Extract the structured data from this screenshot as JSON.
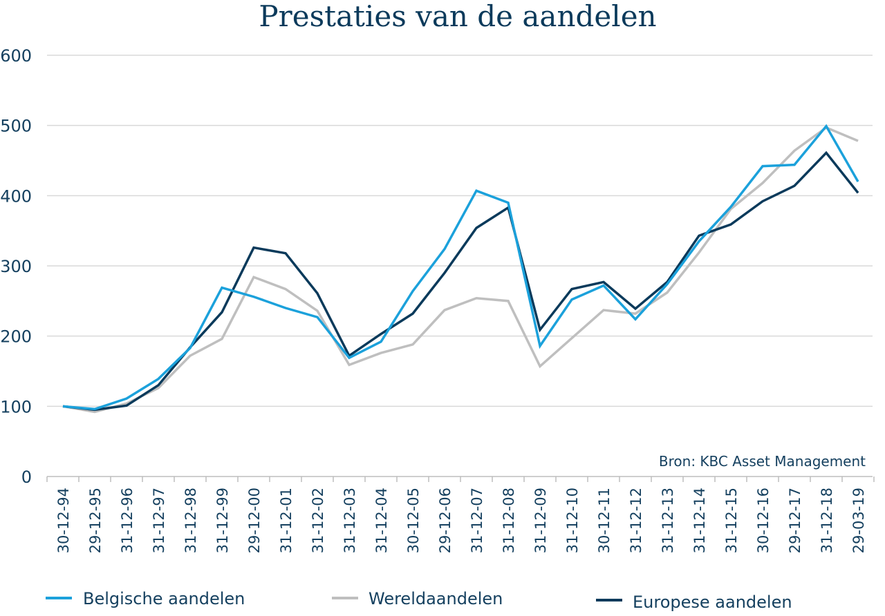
{
  "chart_data": {
    "type": "line",
    "title": "Prestaties van de aandelen",
    "source": "Bron: KBC Asset Management",
    "xlabel": "",
    "ylabel": "",
    "ylim": [
      0,
      600
    ],
    "yticks": [
      "600",
      "500",
      "400",
      "300",
      "200",
      "100",
      "0"
    ],
    "ytick_values": [
      600,
      500,
      400,
      300,
      200,
      100,
      0
    ],
    "grid": true,
    "legend_position": "bottom",
    "categories": [
      "30-12-94",
      "29-12-95",
      "31-12-96",
      "31-12-97",
      "31-12-98",
      "31-12-99",
      "29-12-00",
      "31-12-01",
      "31-12-02",
      "31-12-03",
      "31-12-04",
      "30-12-05",
      "29-12-06",
      "31-12-07",
      "31-12-08",
      "31-12-09",
      "31-12-10",
      "30-12-11",
      "31-12-12",
      "31-12-13",
      "31-12-14",
      "31-12-15",
      "30-12-16",
      "29-12-17",
      "31-12-18",
      "29-03-19"
    ],
    "series": [
      {
        "name": "Belgische aandelen",
        "color": "#1ba1db",
        "values": [
          100,
          96,
          111,
          139,
          183,
          269,
          256,
          240,
          227,
          169,
          192,
          264,
          324,
          407,
          390,
          186,
          252,
          272,
          224,
          274,
          335,
          384,
          442,
          444,
          499,
          420
        ]
      },
      {
        "name": "Wereldaandelen",
        "color": "#bfbfbf",
        "values": [
          100,
          92,
          104,
          126,
          172,
          196,
          284,
          267,
          236,
          159,
          176,
          188,
          237,
          254,
          250,
          157,
          197,
          237,
          232,
          262,
          319,
          381,
          418,
          464,
          497,
          478
        ]
      },
      {
        "name": "Europese aandelen",
        "color": "#0b3a5b",
        "values": [
          100,
          95,
          101,
          130,
          184,
          234,
          326,
          318,
          261,
          172,
          203,
          232,
          290,
          354,
          383,
          209,
          267,
          277,
          239,
          277,
          343,
          359,
          392,
          414,
          461,
          404
        ]
      }
    ]
  }
}
